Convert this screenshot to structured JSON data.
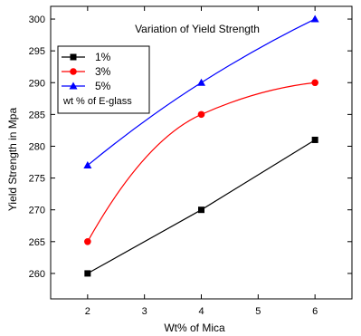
{
  "chart_data": {
    "type": "line",
    "title": "Variation of Yield Strength",
    "xlabel": "Wt% of Mica",
    "ylabel": "Yield Strength in Mpa",
    "x": [
      2,
      4,
      6
    ],
    "xlim": [
      1.35,
      6.65
    ],
    "ylim": [
      256,
      302
    ],
    "xticks": [
      2,
      3,
      4,
      5,
      6
    ],
    "yticks": [
      260,
      265,
      270,
      275,
      280,
      285,
      290,
      295,
      300
    ],
    "legend_title": "wt % of E-glass",
    "legend_position": "top-left",
    "grid": false,
    "series": [
      {
        "name": "1%",
        "values": [
          260,
          270,
          281
        ],
        "color": "#000000",
        "marker": "square",
        "smooth": false
      },
      {
        "name": "3%",
        "values": [
          265,
          285,
          290
        ],
        "color": "#ff0000",
        "marker": "circle",
        "smooth": true
      },
      {
        "name": "5%",
        "values": [
          277,
          290,
          300
        ],
        "color": "#0000ff",
        "marker": "triangle",
        "smooth": true
      }
    ]
  }
}
